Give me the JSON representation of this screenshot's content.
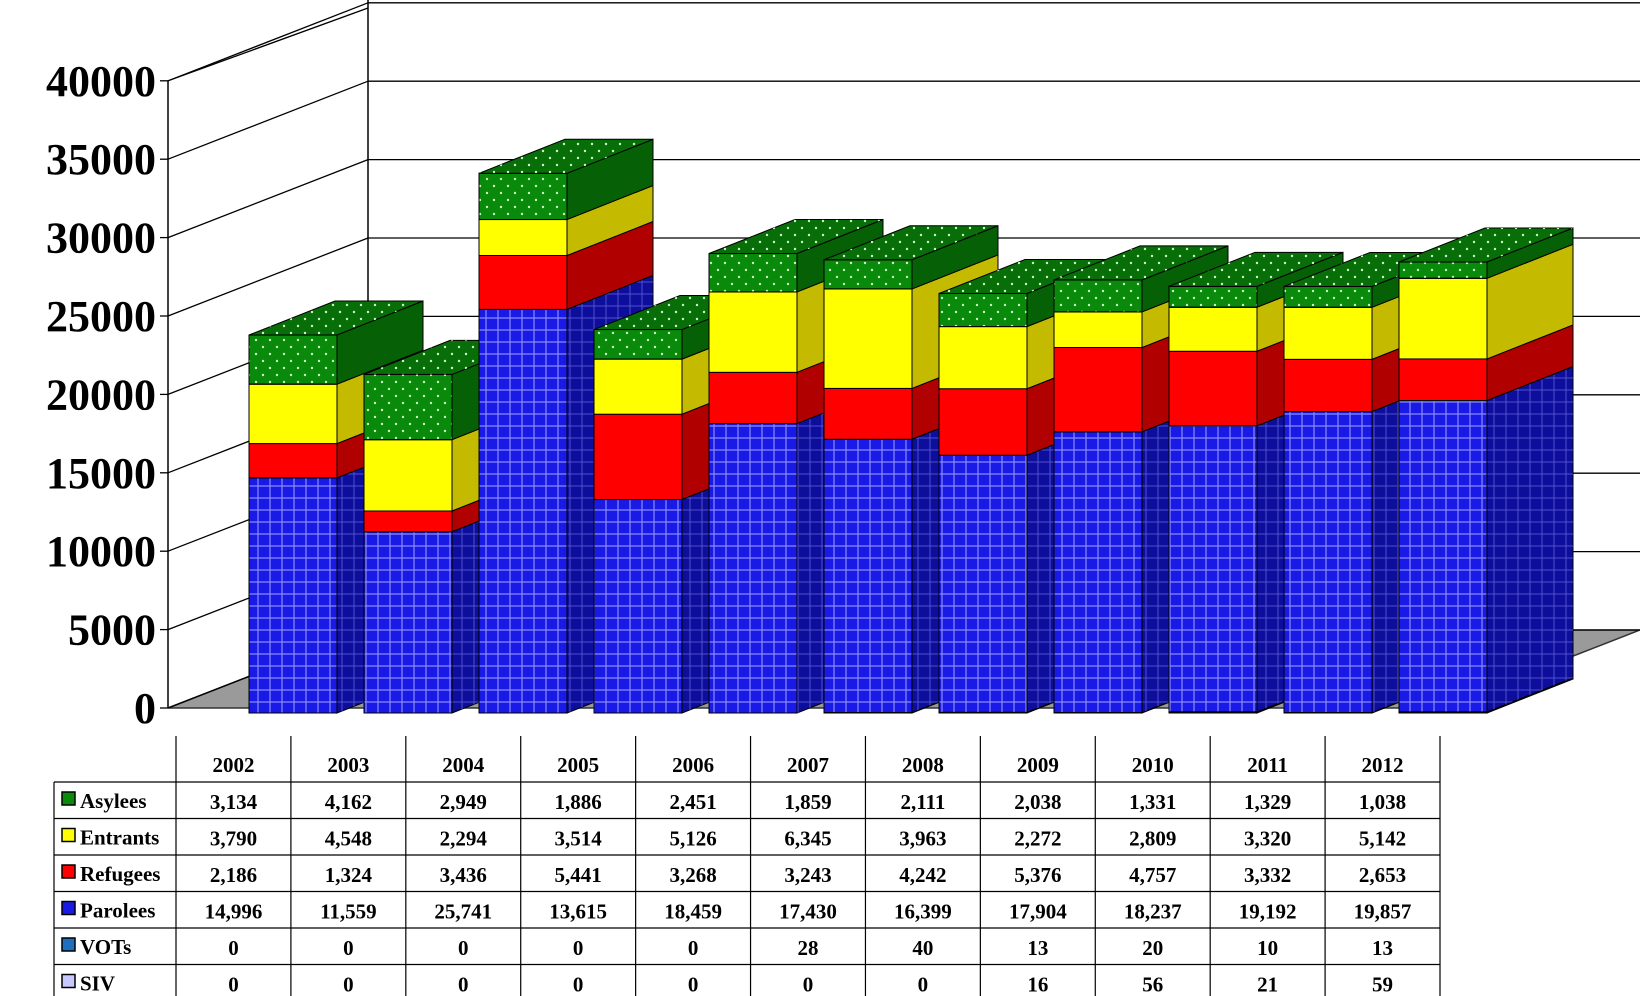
{
  "chart_data": {
    "type": "bar",
    "stacked": true,
    "three_d": true,
    "ylim": [
      0,
      40000
    ],
    "yticks": [
      "0",
      "5000",
      "10000",
      "15000",
      "20000",
      "25000",
      "30000",
      "35000",
      "40000"
    ],
    "categories": [
      "2002",
      "2003",
      "2004",
      "2005",
      "2006",
      "2007",
      "2008",
      "2009",
      "2010",
      "2011",
      "2012"
    ],
    "series": [
      {
        "name": "SIV",
        "color": "#c8c8ff",
        "values": [
          0,
          0,
          0,
          0,
          0,
          0,
          0,
          16,
          56,
          21,
          59
        ],
        "labels": [
          "0",
          "0",
          "0",
          "0",
          "0",
          "0",
          "0",
          "16",
          "56",
          "21",
          "59"
        ]
      },
      {
        "name": "VOTs",
        "color": "#1f6fbf",
        "values": [
          0,
          0,
          0,
          0,
          0,
          28,
          40,
          13,
          20,
          10,
          13
        ],
        "labels": [
          "0",
          "0",
          "0",
          "0",
          "0",
          "28",
          "40",
          "13",
          "20",
          "10",
          "13"
        ]
      },
      {
        "name": "Parolees",
        "color": "#1a1ae6",
        "values": [
          14996,
          11559,
          25741,
          13615,
          18459,
          17430,
          16399,
          17904,
          18237,
          19192,
          19857
        ],
        "labels": [
          "14,996",
          "11,559",
          "25,741",
          "13,615",
          "18,459",
          "17,430",
          "16,399",
          "17,904",
          "18,237",
          "19,192",
          "19,857"
        ]
      },
      {
        "name": "Refugees",
        "color": "#ff0000",
        "values": [
          2186,
          1324,
          3436,
          5441,
          3268,
          3243,
          4242,
          5376,
          4757,
          3332,
          2653
        ],
        "labels": [
          "2,186",
          "1,324",
          "3,436",
          "5,441",
          "3,268",
          "3,243",
          "4,242",
          "5,376",
          "4,757",
          "3,332",
          "2,653"
        ]
      },
      {
        "name": "Entrants",
        "color": "#ffff00",
        "values": [
          3790,
          4548,
          2294,
          3514,
          5126,
          6345,
          3963,
          2272,
          2809,
          3320,
          5142
        ],
        "labels": [
          "3,790",
          "4,548",
          "2,294",
          "3,514",
          "5,126",
          "6,345",
          "3,963",
          "2,272",
          "2,809",
          "3,320",
          "5,142"
        ]
      },
      {
        "name": "Asylees",
        "color": "#0a8a0a",
        "values": [
          3134,
          4162,
          2949,
          1886,
          2451,
          1859,
          2111,
          2038,
          1331,
          1329,
          1038
        ],
        "labels": [
          "3,134",
          "4,162",
          "2,949",
          "1,886",
          "2,451",
          "1,859",
          "2,111",
          "2,038",
          "1,331",
          "1,329",
          "1,038"
        ]
      }
    ],
    "table_row_order": [
      "Asylees",
      "Entrants",
      "Refugees",
      "Parolees",
      "VOTs",
      "SIV"
    ],
    "grid": true,
    "legend": "data-table"
  }
}
